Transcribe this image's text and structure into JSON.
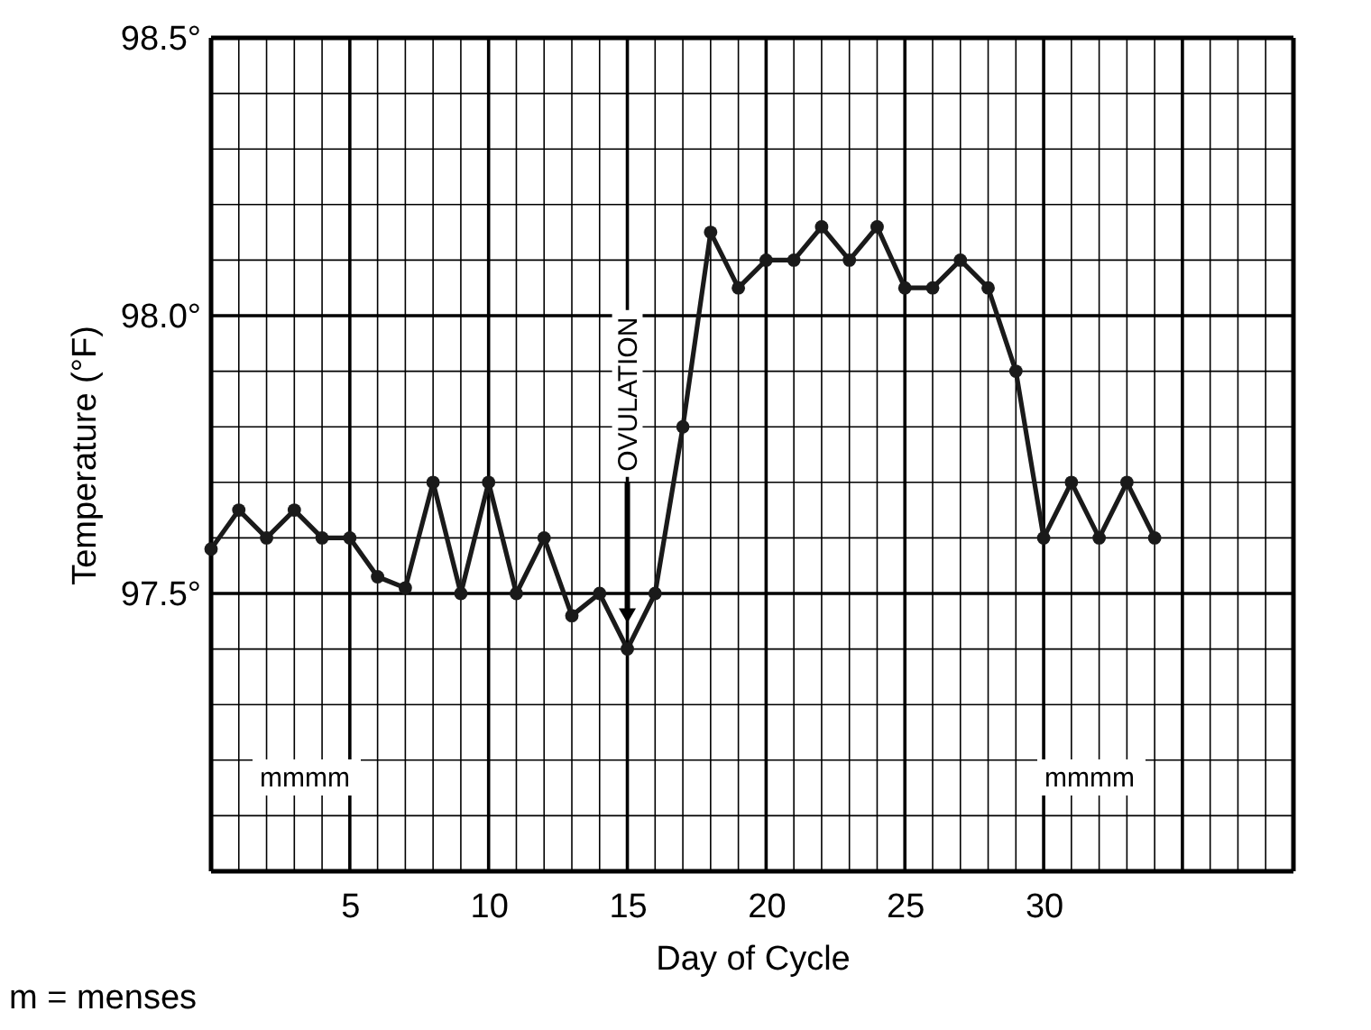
{
  "chart_data": {
    "type": "line",
    "xlabel": "Day of Cycle",
    "ylabel": "Temperature (°F)",
    "x": [
      0,
      1,
      2,
      3,
      4,
      5,
      6,
      7,
      8,
      9,
      10,
      11,
      12,
      13,
      14,
      15,
      16,
      17,
      18,
      19,
      20,
      21,
      22,
      23,
      24,
      25,
      26,
      27,
      28,
      29,
      30,
      31,
      32,
      33,
      34
    ],
    "series": [
      {
        "color": "#1a1a1a",
        "values": [
          97.58,
          97.65,
          97.6,
          97.65,
          97.6,
          97.6,
          97.53,
          97.51,
          97.7,
          97.5,
          97.7,
          97.5,
          97.6,
          97.46,
          97.5,
          97.4,
          97.5,
          97.8,
          98.15,
          98.05,
          98.1,
          98.1,
          98.16,
          98.1,
          98.16,
          98.05,
          98.05,
          98.1,
          98.05,
          97.9,
          97.6,
          97.7,
          97.6,
          97.7,
          97.6
        ]
      }
    ],
    "xlim": [
      0,
      39
    ],
    "xticks": [
      {
        "value": 1,
        "label": null
      },
      {
        "value": 2,
        "label": null
      },
      {
        "value": 3,
        "label": null
      },
      {
        "value": 4,
        "label": null
      },
      5,
      {
        "value": 6,
        "label": null
      },
      {
        "value": 7,
        "label": null
      },
      {
        "value": 8,
        "label": null
      },
      {
        "value": 9,
        "label": null
      },
      10,
      {
        "value": 11,
        "label": null
      },
      {
        "value": 12,
        "label": null
      },
      {
        "value": 13,
        "label": null
      },
      {
        "value": 14,
        "label": null
      },
      15,
      {
        "value": 16,
        "label": null
      },
      {
        "value": 17,
        "label": null
      },
      {
        "value": 18,
        "label": null
      },
      {
        "value": 19,
        "label": null
      },
      20,
      {
        "value": 21,
        "label": null
      },
      {
        "value": 22,
        "label": null
      },
      {
        "value": 23,
        "label": null
      },
      {
        "value": 24,
        "label": null
      },
      25,
      {
        "value": 26,
        "label": null
      },
      {
        "value": 27,
        "label": null
      },
      {
        "value": 28,
        "label": null
      },
      {
        "value": 29,
        "label": null
      },
      30,
      {
        "value": 31,
        "label": null
      },
      {
        "value": 32,
        "label": null
      },
      {
        "value": 33,
        "label": null
      },
      {
        "value": 34,
        "label": null
      },
      {
        "value": 35,
        "label": null
      },
      {
        "value": 36,
        "label": null
      },
      {
        "value": 37,
        "label": null
      },
      {
        "value": 38,
        "label": null
      }
    ],
    "ylim": [
      97.0,
      98.5
    ],
    "yticks": [
      {
        "value": 97.1,
        "label": null
      },
      {
        "value": 97.2,
        "label": null
      },
      {
        "value": 97.3,
        "label": null
      },
      {
        "value": 97.4,
        "label": null
      },
      {
        "value": 97.5,
        "label": "97.5°"
      },
      {
        "value": 97.6,
        "label": null
      },
      {
        "value": 97.7,
        "label": null
      },
      {
        "value": 97.8,
        "label": null
      },
      {
        "value": 97.9,
        "label": null
      },
      {
        "value": 98.0,
        "label": "98.0°"
      },
      {
        "value": 98.1,
        "label": null
      },
      {
        "value": 98.2,
        "label": null
      },
      {
        "value": 98.3,
        "label": null
      },
      {
        "value": 98.4,
        "label": null
      },
      {
        "value": 98.5,
        "label": "98.5°"
      }
    ],
    "grid": true,
    "marker": "circle",
    "line_style": "solid",
    "annotations": [
      "OVULATION",
      "mmmm",
      "mmmm",
      "m = menses"
    ]
  }
}
